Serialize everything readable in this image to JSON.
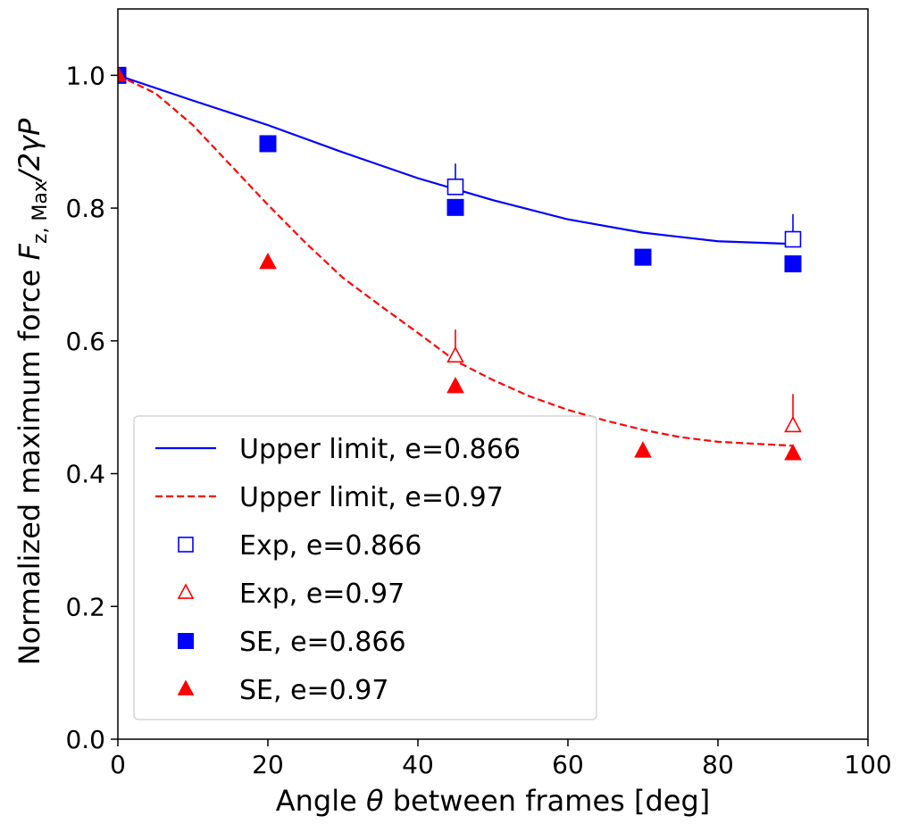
{
  "chart_data": {
    "type": "line",
    "xlabel": {
      "prefix": "Angle ",
      "symbol": "θ",
      "suffix": " between frames [deg]"
    },
    "ylabel": {
      "prefix": "Normalized maximum force ",
      "symbol": "F",
      "sub": "z, Max",
      "suffix": "/2γP"
    },
    "xlim": [
      0,
      100
    ],
    "ylim": [
      0,
      1.1
    ],
    "xticks": [
      "0",
      "20",
      "40",
      "60",
      "80",
      "100"
    ],
    "yticks": [
      "0.0",
      "0.2",
      "0.4",
      "0.6",
      "0.8",
      "1.0"
    ],
    "grid": false,
    "legend_position": "lower-left",
    "series": [
      {
        "name": "Upper limit, e=0.866",
        "kind": "line",
        "style": "solid",
        "color": "#0000ff",
        "x": [
          0,
          10,
          20,
          30,
          40,
          50,
          60,
          70,
          80,
          90
        ],
        "y": [
          1.0,
          0.962,
          0.925,
          0.884,
          0.845,
          0.812,
          0.783,
          0.763,
          0.75,
          0.746
        ]
      },
      {
        "name": "Upper limit, e=0.97",
        "kind": "line",
        "style": "dashed",
        "color": "#ff0000",
        "x": [
          0,
          5,
          10,
          15,
          20,
          25,
          30,
          35,
          40,
          45,
          50,
          55,
          60,
          65,
          70,
          75,
          80,
          85,
          90
        ],
        "y": [
          1.0,
          0.973,
          0.925,
          0.865,
          0.805,
          0.748,
          0.695,
          0.653,
          0.612,
          0.57,
          0.541,
          0.516,
          0.496,
          0.48,
          0.466,
          0.455,
          0.448,
          0.445,
          0.442
        ]
      },
      {
        "name": "Exp, e=0.866",
        "kind": "marker",
        "marker": "square-open",
        "color": "#0000ff",
        "x": [
          45,
          90
        ],
        "y": [
          0.832,
          0.753
        ],
        "yerr": [
          0.035,
          0.038
        ]
      },
      {
        "name": "Exp, e=0.97",
        "kind": "marker",
        "marker": "triangle-open",
        "color": "#ff0000",
        "x": [
          45,
          90
        ],
        "y": [
          0.577,
          0.472
        ],
        "yerr": [
          0.04,
          0.048
        ]
      },
      {
        "name": "SE, e=0.866",
        "kind": "marker",
        "marker": "square-filled",
        "color": "#0000ff",
        "x": [
          0,
          20,
          45,
          70,
          90
        ],
        "y": [
          1.0,
          0.897,
          0.801,
          0.726,
          0.716
        ]
      },
      {
        "name": "SE, e=0.97",
        "kind": "marker",
        "marker": "triangle-filled",
        "color": "#ff0000",
        "x": [
          0,
          20,
          45,
          70,
          90
        ],
        "y": [
          1.0,
          0.718,
          0.531,
          0.434,
          0.43
        ]
      }
    ]
  }
}
